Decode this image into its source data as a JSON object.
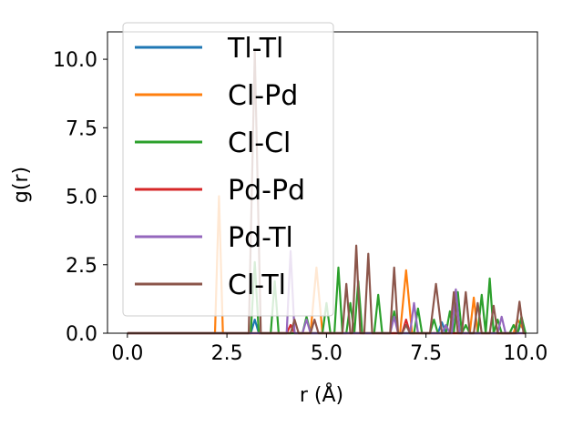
{
  "chart_data": {
    "type": "line",
    "title": "",
    "xlabel": "r (Å)",
    "ylabel": "g(r)",
    "xlim": [
      -0.5,
      10.3
    ],
    "ylim": [
      0,
      11
    ],
    "xticks": [
      "0.0",
      "2.5",
      "5.0",
      "7.5",
      "10.0"
    ],
    "yticks": [
      "0.0",
      "2.5",
      "5.0",
      "7.5",
      "10.0"
    ],
    "grid": false,
    "legend_position": "upper-left",
    "series": [
      {
        "name": "Tl-Tl",
        "color": "#1f77b4",
        "points": [
          [
            0,
            0
          ],
          [
            3.1,
            0
          ],
          [
            3.2,
            0.5
          ],
          [
            3.3,
            0
          ],
          [
            7.8,
            0
          ],
          [
            7.9,
            0.4
          ],
          [
            8.0,
            0
          ],
          [
            9.8,
            0
          ],
          [
            9.9,
            0.4
          ],
          [
            10.0,
            0
          ]
        ]
      },
      {
        "name": "Cl-Pd",
        "color": "#ff7f0e",
        "points": [
          [
            0,
            0
          ],
          [
            2.2,
            0
          ],
          [
            2.3,
            5.0
          ],
          [
            2.4,
            0
          ],
          [
            4.6,
            0
          ],
          [
            4.75,
            2.4
          ],
          [
            4.9,
            0
          ],
          [
            6.85,
            0
          ],
          [
            7.0,
            2.3
          ],
          [
            7.15,
            0
          ],
          [
            8.6,
            0
          ],
          [
            8.7,
            1.3
          ],
          [
            8.8,
            0
          ],
          [
            9.7,
            0
          ],
          [
            9.8,
            0.5
          ],
          [
            10.0,
            0
          ]
        ]
      },
      {
        "name": "Cl-Cl",
        "color": "#2ca02c",
        "points": [
          [
            0,
            0
          ],
          [
            3.1,
            0
          ],
          [
            3.2,
            2.6
          ],
          [
            3.3,
            0
          ],
          [
            3.6,
            0
          ],
          [
            3.7,
            1.9
          ],
          [
            3.8,
            0
          ],
          [
            4.4,
            0
          ],
          [
            4.5,
            0.6
          ],
          [
            4.6,
            0
          ],
          [
            4.9,
            0
          ],
          [
            5.0,
            1.1
          ],
          [
            5.1,
            0
          ],
          [
            5.2,
            0
          ],
          [
            5.3,
            2.4
          ],
          [
            5.4,
            0
          ],
          [
            5.5,
            0
          ],
          [
            5.6,
            1.1
          ],
          [
            5.7,
            0
          ],
          [
            5.8,
            1.9
          ],
          [
            5.9,
            0
          ],
          [
            6.2,
            0
          ],
          [
            6.3,
            1.4
          ],
          [
            6.4,
            0
          ],
          [
            6.6,
            0
          ],
          [
            6.7,
            0.8
          ],
          [
            6.8,
            0
          ],
          [
            7.2,
            0
          ],
          [
            7.3,
            0.9
          ],
          [
            7.4,
            0
          ],
          [
            7.6,
            0
          ],
          [
            7.7,
            0.5
          ],
          [
            7.8,
            0
          ],
          [
            8.0,
            0
          ],
          [
            8.1,
            0.8
          ],
          [
            8.2,
            0
          ],
          [
            8.3,
            1.5
          ],
          [
            8.4,
            0
          ],
          [
            8.5,
            0.3
          ],
          [
            8.6,
            0
          ],
          [
            8.8,
            0
          ],
          [
            8.9,
            1.4
          ],
          [
            9.0,
            0
          ],
          [
            9.1,
            2.0
          ],
          [
            9.2,
            0
          ],
          [
            9.3,
            0.5
          ],
          [
            9.4,
            0
          ],
          [
            9.6,
            0
          ],
          [
            9.7,
            0.3
          ],
          [
            9.8,
            0
          ],
          [
            9.9,
            0.6
          ],
          [
            10.0,
            0
          ]
        ]
      },
      {
        "name": "Pd-Pd",
        "color": "#d62728",
        "points": [
          [
            0,
            0
          ],
          [
            4.0,
            0
          ],
          [
            4.1,
            0.3
          ],
          [
            4.2,
            0
          ],
          [
            6.9,
            0
          ],
          [
            7.0,
            0.5
          ],
          [
            7.1,
            0
          ],
          [
            10.0,
            0
          ]
        ]
      },
      {
        "name": "Pd-Tl",
        "color": "#9467bd",
        "points": [
          [
            0,
            0
          ],
          [
            4.0,
            0
          ],
          [
            4.1,
            3.0
          ],
          [
            4.2,
            0
          ],
          [
            4.4,
            0
          ],
          [
            4.5,
            0.5
          ],
          [
            4.6,
            0
          ],
          [
            6.6,
            0
          ],
          [
            6.7,
            0.6
          ],
          [
            6.8,
            0
          ],
          [
            7.1,
            0
          ],
          [
            7.2,
            1.1
          ],
          [
            7.3,
            0
          ],
          [
            7.9,
            0
          ],
          [
            8.0,
            0.3
          ],
          [
            8.1,
            0
          ],
          [
            8.15,
            0
          ],
          [
            8.25,
            1.6
          ],
          [
            8.35,
            0
          ],
          [
            9.3,
            0
          ],
          [
            9.4,
            0.6
          ],
          [
            9.5,
            0
          ],
          [
            10.0,
            0
          ]
        ]
      },
      {
        "name": "Cl-Tl",
        "color": "#8c564b",
        "points": [
          [
            0,
            0
          ],
          [
            3.05,
            0
          ],
          [
            3.2,
            10.3
          ],
          [
            3.35,
            0
          ],
          [
            4.1,
            0
          ],
          [
            4.2,
            0.5
          ],
          [
            4.3,
            0
          ],
          [
            4.6,
            0
          ],
          [
            4.7,
            0.5
          ],
          [
            4.8,
            0
          ],
          [
            5.4,
            0
          ],
          [
            5.5,
            1.8
          ],
          [
            5.6,
            0
          ],
          [
            5.65,
            0
          ],
          [
            5.75,
            3.2
          ],
          [
            5.85,
            0
          ],
          [
            5.95,
            0
          ],
          [
            6.05,
            2.9
          ],
          [
            6.15,
            0
          ],
          [
            6.6,
            0
          ],
          [
            6.7,
            2.4
          ],
          [
            6.8,
            0
          ],
          [
            6.9,
            0
          ],
          [
            7.0,
            0.3
          ],
          [
            7.1,
            0
          ],
          [
            7.6,
            0
          ],
          [
            7.75,
            1.8
          ],
          [
            7.9,
            0
          ],
          [
            8.1,
            0
          ],
          [
            8.2,
            1.5
          ],
          [
            8.3,
            0
          ],
          [
            8.4,
            0
          ],
          [
            8.5,
            1.5
          ],
          [
            8.6,
            0
          ],
          [
            8.7,
            0
          ],
          [
            8.8,
            1.1
          ],
          [
            8.9,
            0
          ],
          [
            9.1,
            0
          ],
          [
            9.2,
            1.0
          ],
          [
            9.3,
            0
          ],
          [
            9.75,
            0
          ],
          [
            9.85,
            1.15
          ],
          [
            9.95,
            0
          ],
          [
            10.0,
            0
          ]
        ]
      }
    ]
  }
}
